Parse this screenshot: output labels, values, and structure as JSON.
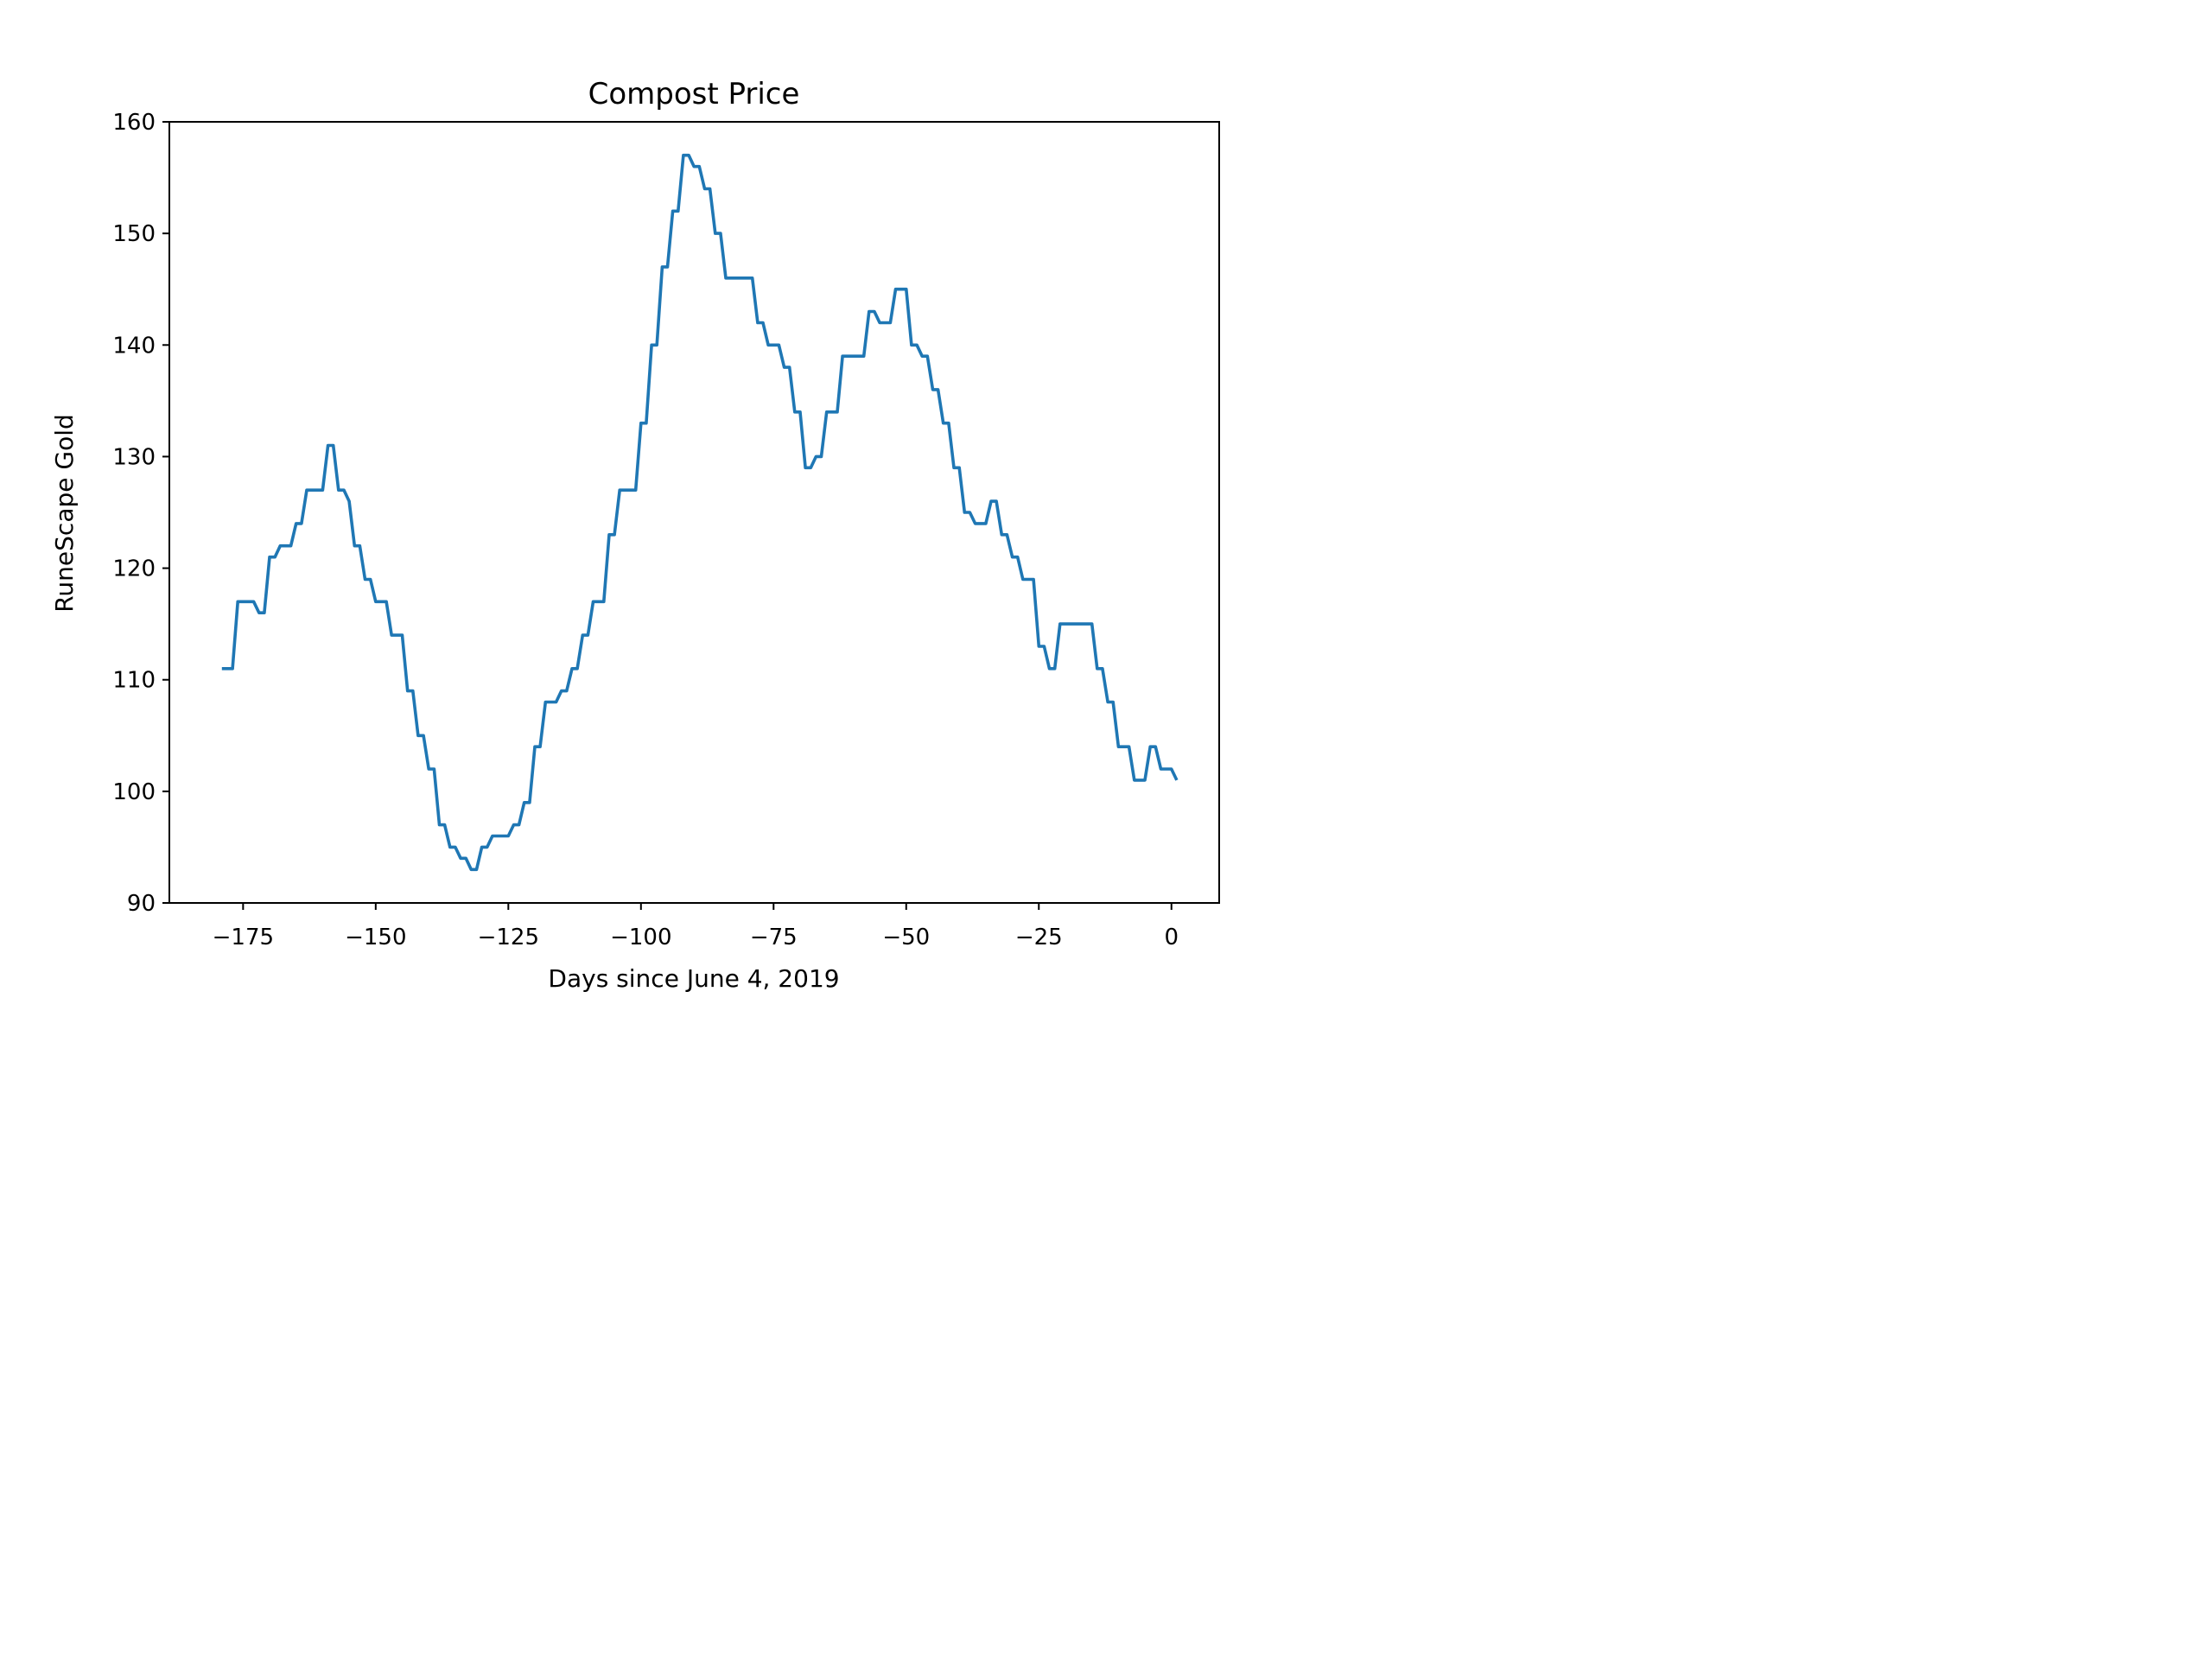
{
  "chart_data": {
    "type": "line",
    "title": "Compost Price",
    "xlabel": "Days since June 4, 2019",
    "ylabel": "RuneScape Gold",
    "xlim": [
      -188.9,
      9
    ],
    "ylim": [
      90,
      160
    ],
    "xticks": [
      -175,
      -150,
      -125,
      -100,
      -75,
      -50,
      -25,
      0
    ],
    "xtick_labels": [
      "−175",
      "−150",
      "−125",
      "−100",
      "−75",
      "−50",
      "−25",
      "0"
    ],
    "yticks": [
      90,
      100,
      110,
      120,
      130,
      140,
      150,
      160
    ],
    "ytick_labels": [
      "90",
      "100",
      "110",
      "120",
      "130",
      "140",
      "150",
      "160"
    ],
    "grid": false,
    "legend": "none",
    "series": [
      {
        "color": "#1f77b4",
        "points": [
          [
            -179,
            111
          ],
          [
            -178,
            111
          ],
          [
            -177,
            111
          ],
          [
            -176,
            117
          ],
          [
            -175,
            117
          ],
          [
            -174,
            117
          ],
          [
            -173,
            117
          ],
          [
            -172,
            116
          ],
          [
            -171,
            116
          ],
          [
            -170,
            121
          ],
          [
            -169,
            121
          ],
          [
            -168,
            122
          ],
          [
            -167,
            122
          ],
          [
            -166,
            122
          ],
          [
            -165,
            124
          ],
          [
            -164,
            124
          ],
          [
            -163,
            127
          ],
          [
            -162,
            127
          ],
          [
            -161,
            127
          ],
          [
            -160,
            127
          ],
          [
            -159,
            131
          ],
          [
            -158,
            131
          ],
          [
            -157,
            127
          ],
          [
            -156,
            127
          ],
          [
            -155,
            126
          ],
          [
            -154,
            122
          ],
          [
            -153,
            122
          ],
          [
            -152,
            119
          ],
          [
            -151,
            119
          ],
          [
            -150,
            117
          ],
          [
            -149,
            117
          ],
          [
            -148,
            117
          ],
          [
            -147,
            114
          ],
          [
            -146,
            114
          ],
          [
            -145,
            114
          ],
          [
            -144,
            109
          ],
          [
            -143,
            109
          ],
          [
            -142,
            105
          ],
          [
            -141,
            105
          ],
          [
            -140,
            102
          ],
          [
            -139,
            102
          ],
          [
            -138,
            97
          ],
          [
            -137,
            97
          ],
          [
            -136,
            95
          ],
          [
            -135,
            95
          ],
          [
            -134,
            94
          ],
          [
            -133,
            94
          ],
          [
            -132,
            93
          ],
          [
            -131,
            93
          ],
          [
            -130,
            95
          ],
          [
            -129,
            95
          ],
          [
            -128,
            96
          ],
          [
            -127,
            96
          ],
          [
            -126,
            96
          ],
          [
            -125,
            96
          ],
          [
            -124,
            97
          ],
          [
            -123,
            97
          ],
          [
            -122,
            99
          ],
          [
            -121,
            99
          ],
          [
            -120,
            104
          ],
          [
            -119,
            104
          ],
          [
            -118,
            108
          ],
          [
            -117,
            108
          ],
          [
            -116,
            108
          ],
          [
            -115,
            109
          ],
          [
            -114,
            109
          ],
          [
            -113,
            111
          ],
          [
            -112,
            111
          ],
          [
            -111,
            114
          ],
          [
            -110,
            114
          ],
          [
            -109,
            117
          ],
          [
            -108,
            117
          ],
          [
            -107,
            117
          ],
          [
            -106,
            123
          ],
          [
            -105,
            123
          ],
          [
            -104,
            127
          ],
          [
            -103,
            127
          ],
          [
            -102,
            127
          ],
          [
            -101,
            127
          ],
          [
            -100,
            133
          ],
          [
            -99,
            133
          ],
          [
            -98,
            140
          ],
          [
            -97,
            140
          ],
          [
            -96,
            147
          ],
          [
            -95,
            147
          ],
          [
            -94,
            152
          ],
          [
            -93,
            152
          ],
          [
            -92,
            157
          ],
          [
            -91,
            157
          ],
          [
            -90,
            156
          ],
          [
            -89,
            156
          ],
          [
            -88,
            154
          ],
          [
            -87,
            154
          ],
          [
            -86,
            150
          ],
          [
            -85,
            150
          ],
          [
            -84,
            146
          ],
          [
            -83,
            146
          ],
          [
            -82,
            146
          ],
          [
            -81,
            146
          ],
          [
            -80,
            146
          ],
          [
            -79,
            146
          ],
          [
            -78,
            142
          ],
          [
            -77,
            142
          ],
          [
            -76,
            140
          ],
          [
            -75,
            140
          ],
          [
            -74,
            140
          ],
          [
            -73,
            138
          ],
          [
            -72,
            138
          ],
          [
            -71,
            134
          ],
          [
            -70,
            134
          ],
          [
            -69,
            129
          ],
          [
            -68,
            129
          ],
          [
            -67,
            130
          ],
          [
            -66,
            130
          ],
          [
            -65,
            134
          ],
          [
            -64,
            134
          ],
          [
            -63,
            134
          ],
          [
            -62,
            139
          ],
          [
            -61,
            139
          ],
          [
            -60,
            139
          ],
          [
            -59,
            139
          ],
          [
            -58,
            139
          ],
          [
            -57,
            143
          ],
          [
            -56,
            143
          ],
          [
            -55,
            142
          ],
          [
            -54,
            142
          ],
          [
            -53,
            142
          ],
          [
            -52,
            145
          ],
          [
            -51,
            145
          ],
          [
            -50,
            145
          ],
          [
            -49,
            140
          ],
          [
            -48,
            140
          ],
          [
            -47,
            139
          ],
          [
            -46,
            139
          ],
          [
            -45,
            136
          ],
          [
            -44,
            136
          ],
          [
            -43,
            133
          ],
          [
            -42,
            133
          ],
          [
            -41,
            129
          ],
          [
            -40,
            129
          ],
          [
            -39,
            125
          ],
          [
            -38,
            125
          ],
          [
            -37,
            124
          ],
          [
            -36,
            124
          ],
          [
            -35,
            124
          ],
          [
            -34,
            126
          ],
          [
            -33,
            126
          ],
          [
            -32,
            123
          ],
          [
            -31,
            123
          ],
          [
            -30,
            121
          ],
          [
            -29,
            121
          ],
          [
            -28,
            119
          ],
          [
            -27,
            119
          ],
          [
            -26,
            119
          ],
          [
            -25,
            113
          ],
          [
            -24,
            113
          ],
          [
            -23,
            111
          ],
          [
            -22,
            111
          ],
          [
            -21,
            115
          ],
          [
            -20,
            115
          ],
          [
            -19,
            115
          ],
          [
            -18,
            115
          ],
          [
            -17,
            115
          ],
          [
            -16,
            115
          ],
          [
            -15,
            115
          ],
          [
            -14,
            111
          ],
          [
            -13,
            111
          ],
          [
            -12,
            108
          ],
          [
            -11,
            108
          ],
          [
            -10,
            104
          ],
          [
            -9,
            104
          ],
          [
            -8,
            104
          ],
          [
            -7,
            101
          ],
          [
            -6,
            101
          ],
          [
            -5,
            101
          ],
          [
            -4,
            104
          ],
          [
            -3,
            104
          ],
          [
            -2,
            102
          ],
          [
            -1,
            102
          ],
          [
            0,
            102
          ],
          [
            1,
            101
          ]
        ]
      }
    ]
  }
}
